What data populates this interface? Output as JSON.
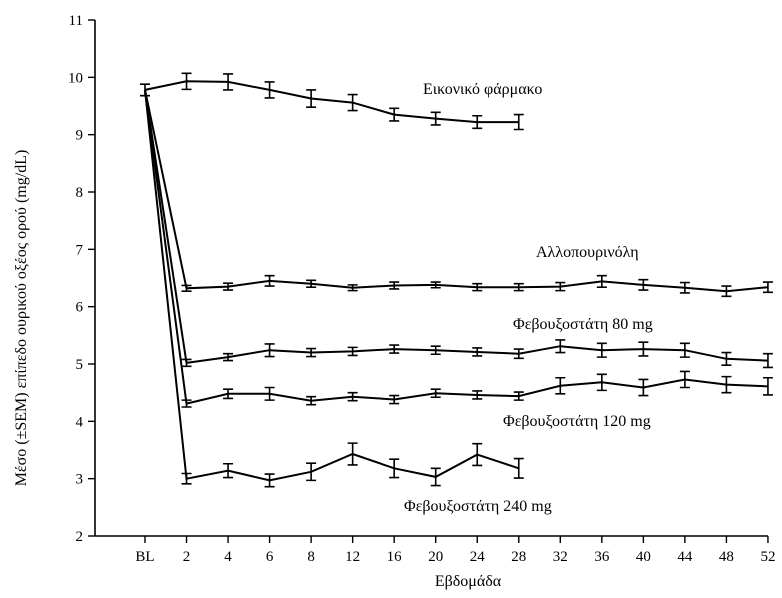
{
  "chart_data": {
    "type": "line",
    "title": "",
    "xlabel": "Εβδομάδα",
    "ylabel": "Μέσο (±SEM) επίπεδο ουρικού οξέος ορού (mg/dL)",
    "ylim": [
      2,
      11
    ],
    "yticks": [
      2,
      3,
      4,
      5,
      6,
      7,
      8,
      9,
      10,
      11
    ],
    "categories": [
      "BL",
      "2",
      "4",
      "6",
      "8",
      "12",
      "16",
      "20",
      "24",
      "28",
      "32",
      "36",
      "40",
      "44",
      "48",
      "52"
    ],
    "grid": false,
    "legend": "none",
    "series": [
      {
        "name": "Εικονικό φάρμακο",
        "values": [
          9.78,
          9.93,
          9.92,
          9.78,
          9.63,
          9.56,
          9.35,
          9.28,
          9.22,
          9.22,
          null,
          null,
          null,
          null,
          null,
          null
        ],
        "sem": [
          0.1,
          0.14,
          0.14,
          0.14,
          0.15,
          0.14,
          0.11,
          0.11,
          0.11,
          0.13,
          null,
          null,
          null,
          null,
          null,
          null
        ]
      },
      {
        "name": "Αλλοπουρινόλη",
        "values": [
          9.78,
          6.32,
          6.35,
          6.45,
          6.4,
          6.33,
          6.37,
          6.38,
          6.34,
          6.34,
          6.35,
          6.44,
          6.38,
          6.33,
          6.27,
          6.34
        ],
        "sem": [
          0.1,
          0.05,
          0.06,
          0.09,
          0.06,
          0.05,
          0.06,
          0.05,
          0.06,
          0.06,
          0.07,
          0.1,
          0.09,
          0.09,
          0.09,
          0.09
        ]
      },
      {
        "name": "Φεβουξοστάτη 80 mg",
        "values": [
          9.78,
          5.02,
          5.12,
          5.24,
          5.2,
          5.22,
          5.26,
          5.24,
          5.21,
          5.18,
          5.31,
          5.24,
          5.26,
          5.24,
          5.09,
          5.06
        ],
        "sem": [
          0.1,
          0.06,
          0.06,
          0.11,
          0.07,
          0.07,
          0.07,
          0.07,
          0.07,
          0.08,
          0.11,
          0.12,
          0.12,
          0.12,
          0.11,
          0.12
        ]
      },
      {
        "name": "Φεβουξοστάτη 120 mg",
        "values": [
          9.78,
          4.31,
          4.48,
          4.48,
          4.36,
          4.43,
          4.38,
          4.49,
          4.46,
          4.44,
          4.62,
          4.68,
          4.59,
          4.73,
          4.64,
          4.61
        ],
        "sem": [
          0.1,
          0.06,
          0.08,
          0.11,
          0.07,
          0.07,
          0.07,
          0.07,
          0.07,
          0.07,
          0.14,
          0.14,
          0.14,
          0.14,
          0.14,
          0.15
        ]
      },
      {
        "name": "Φεβουξοστάτη 240 mg",
        "values": [
          9.78,
          3.0,
          3.14,
          2.97,
          3.12,
          3.43,
          3.18,
          3.03,
          3.42,
          3.18,
          null,
          null,
          null,
          null,
          null,
          null
        ],
        "sem": [
          0.1,
          0.09,
          0.12,
          0.11,
          0.15,
          0.19,
          0.16,
          0.15,
          0.19,
          0.17,
          null,
          null,
          null,
          null,
          null,
          null
        ]
      }
    ]
  }
}
